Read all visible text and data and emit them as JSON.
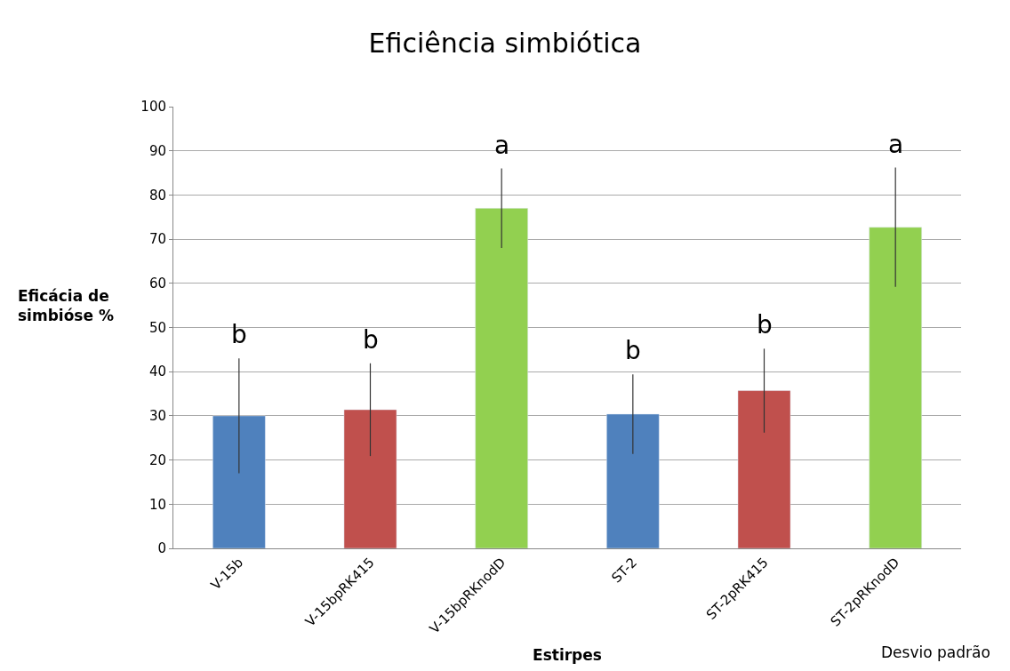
{
  "chart_data": {
    "type": "bar",
    "title": "Eficiência simbiótica",
    "xlabel": "Estirpes",
    "ylabel": "Eficácia de\nsimbióse %",
    "categories": [
      "V-15b",
      "V-15bpRK415",
      "V-15bpRKnodD",
      "ST-2",
      "ST-2pRK415",
      "ST-2pRKnodD"
    ],
    "values": [
      30,
      31.4,
      77,
      30.4,
      35.7,
      72.7
    ],
    "colors": [
      "#4f81bd",
      "#c0504d",
      "#92d050",
      "#4f81bd",
      "#c0504d",
      "#92d050"
    ],
    "errors": [
      13,
      10.5,
      9,
      9,
      9.5,
      13.5
    ],
    "ylim": [
      0,
      100
    ],
    "yticks": [
      0,
      10,
      20,
      30,
      40,
      50,
      60,
      70,
      80,
      90,
      100
    ],
    "grid": "y",
    "annotations": [
      "b",
      "b",
      "a",
      "b",
      "b",
      "a",
      "Desvio padrão"
    ]
  }
}
